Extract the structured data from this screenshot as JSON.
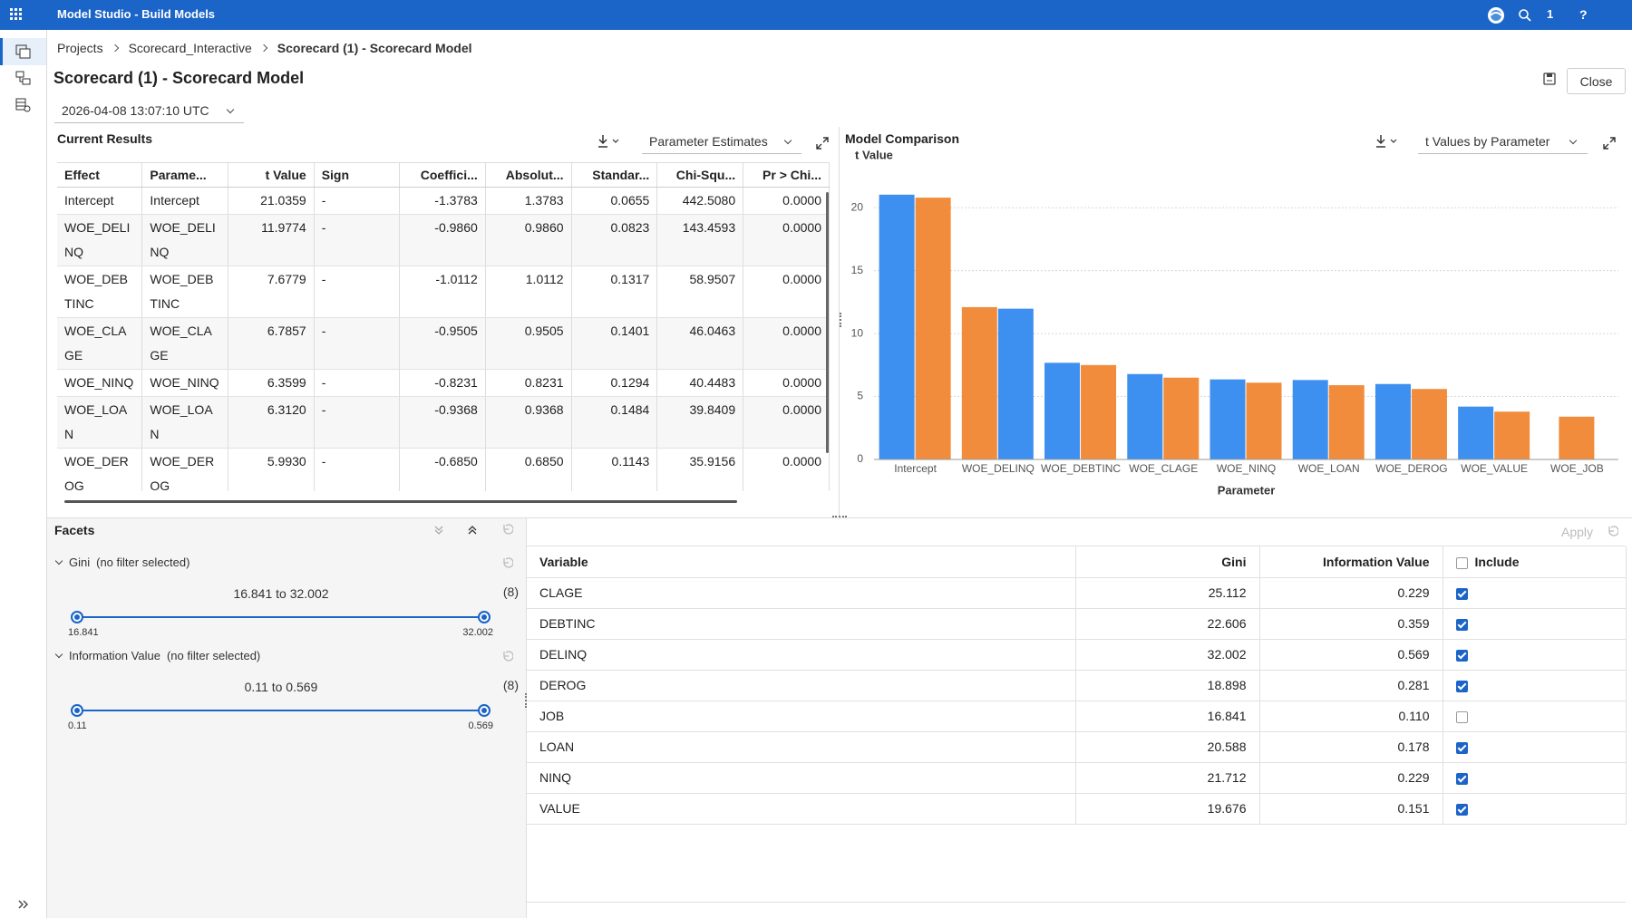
{
  "header": {
    "app_title": "Model Studio - Build Models",
    "notification_count": "1",
    "help": "?"
  },
  "breadcrumb": [
    "Projects",
    "Scorecard_Interactive",
    "Scorecard (1) - Scorecard Model"
  ],
  "page_title": "Scorecard (1) - Scorecard Model",
  "close_button": "Close",
  "timestamp": "2026-04-08 13:07:10 UTC",
  "current_results": {
    "title": "Current Results",
    "view": "Parameter Estimates",
    "table": {
      "columns": [
        "Effect",
        "Parame...",
        "t Value",
        "Sign",
        "Coeffici...",
        "Absolut...",
        "Standar...",
        "Chi-Squ...",
        "Pr > Chi..."
      ],
      "rows": [
        [
          "Intercept",
          "Intercept",
          "21.0359",
          "-",
          "-1.3783",
          "1.3783",
          "0.0655",
          "442.5080",
          "0.0000"
        ],
        [
          "WOE_DELINQ",
          "WOE_DELINQ",
          "11.9774",
          "-",
          "-0.9860",
          "0.9860",
          "0.0823",
          "143.4593",
          "0.0000"
        ],
        [
          "WOE_DEBTINC",
          "WOE_DEBTINC",
          "7.6779",
          "-",
          "-1.0112",
          "1.0112",
          "0.1317",
          "58.9507",
          "0.0000"
        ],
        [
          "WOE_CLAGE",
          "WOE_CLAGE",
          "6.7857",
          "-",
          "-0.9505",
          "0.9505",
          "0.1401",
          "46.0463",
          "0.0000"
        ],
        [
          "WOE_NINQ",
          "WOE_NINQ",
          "6.3599",
          "-",
          "-0.8231",
          "0.8231",
          "0.1294",
          "40.4483",
          "0.0000"
        ],
        [
          "WOE_LOAN",
          "WOE_LOAN",
          "6.3120",
          "-",
          "-0.9368",
          "0.9368",
          "0.1484",
          "39.8409",
          "0.0000"
        ],
        [
          "WOE_DEROG",
          "WOE_DEROG",
          "5.9930",
          "-",
          "-0.6850",
          "0.6850",
          "0.1143",
          "35.9156",
          "0.0000"
        ]
      ]
    }
  },
  "model_comparison": {
    "title": "Model Comparison",
    "view": "t Values by Parameter"
  },
  "chart_data": {
    "type": "bar",
    "y_label": "t Value",
    "x_label": "Parameter",
    "categories": [
      "Intercept",
      "WOE_DELINQ",
      "WOE_DEBTINC",
      "WOE_CLAGE",
      "WOE_NINQ",
      "WOE_LOAN",
      "WOE_DEROG",
      "WOE_VALUE",
      "WOE_JOB"
    ],
    "series": [
      {
        "color": "#3d8ff0",
        "values": [
          21.0359,
          11.9774,
          7.6779,
          6.7857,
          6.3599,
          6.312,
          5.993,
          4.2,
          null
        ]
      },
      {
        "color": "#f08c3c",
        "values": [
          20.8,
          12.1,
          7.5,
          6.5,
          6.1,
          5.9,
          5.6,
          3.8,
          3.4
        ]
      }
    ],
    "ylim": [
      0,
      21.6
    ],
    "yticks": [
      0,
      5,
      10,
      15,
      20
    ],
    "grid": true
  },
  "facets": {
    "title": "Facets",
    "items": [
      {
        "name": "Gini",
        "status": "(no filter selected)",
        "range_text": "16.841 to 32.002",
        "count": "(8)",
        "min": "16.841",
        "max": "32.002"
      },
      {
        "name": "Information Value",
        "status": "(no filter selected)",
        "range_text": "0.11 to 0.569",
        "count": "(8)",
        "min": "0.11",
        "max": "0.569"
      }
    ]
  },
  "variables": {
    "apply": "Apply",
    "columns": [
      "Variable",
      "Gini",
      "Information Value",
      "Include"
    ],
    "rows": [
      {
        "variable": "CLAGE",
        "gini": "25.112",
        "information_value": "0.229",
        "include": true
      },
      {
        "variable": "DEBTINC",
        "gini": "22.606",
        "information_value": "0.359",
        "include": true
      },
      {
        "variable": "DELINQ",
        "gini": "32.002",
        "information_value": "0.569",
        "include": true
      },
      {
        "variable": "DEROG",
        "gini": "18.898",
        "information_value": "0.281",
        "include": true
      },
      {
        "variable": "JOB",
        "gini": "16.841",
        "information_value": "0.110",
        "include": false
      },
      {
        "variable": "LOAN",
        "gini": "20.588",
        "information_value": "0.178",
        "include": true
      },
      {
        "variable": "NINQ",
        "gini": "21.712",
        "information_value": "0.229",
        "include": true
      },
      {
        "variable": "VALUE",
        "gini": "19.676",
        "information_value": "0.151",
        "include": true
      }
    ]
  }
}
